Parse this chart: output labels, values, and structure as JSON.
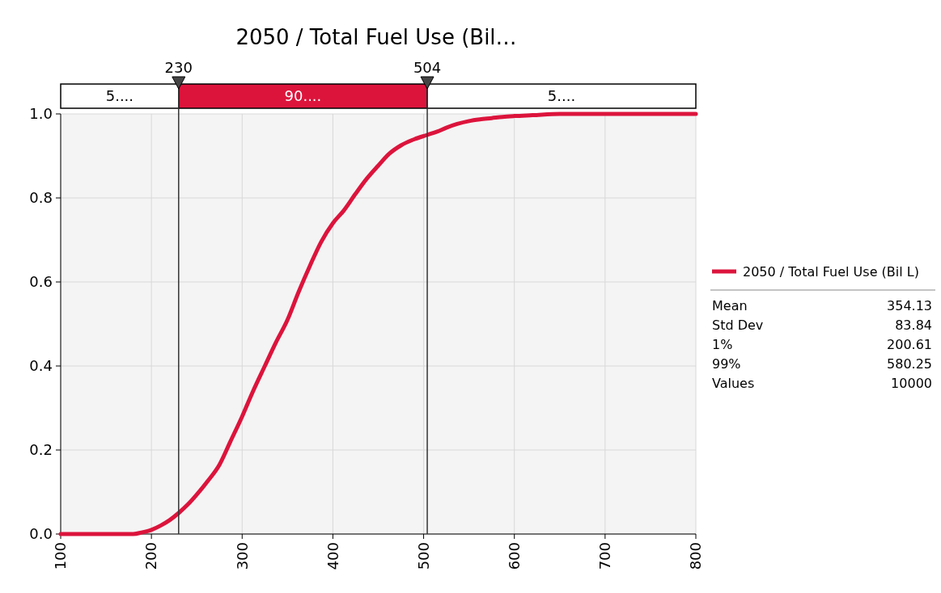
{
  "chart_data": {
    "type": "line",
    "title": "2050 / Total Fuel Use (Bil…",
    "x": [
      100,
      150,
      180,
      190,
      200,
      210,
      220,
      230,
      240,
      250,
      262,
      275,
      287,
      300,
      312,
      325,
      337,
      350,
      362,
      375,
      387,
      400,
      412,
      425,
      437,
      450,
      462,
      475,
      490,
      504,
      515,
      525,
      537,
      550,
      562,
      575,
      587,
      600,
      620,
      650,
      700,
      800
    ],
    "series": [
      {
        "name": "2050 / Total Fuel Use (Bil L)",
        "color": "#dc143c",
        "values": [
          0,
          0,
          0,
          0.004,
          0.01,
          0.02,
          0.033,
          0.05,
          0.07,
          0.094,
          0.126,
          0.165,
          0.22,
          0.28,
          0.34,
          0.4,
          0.455,
          0.51,
          0.575,
          0.64,
          0.695,
          0.74,
          0.77,
          0.81,
          0.845,
          0.877,
          0.905,
          0.925,
          0.94,
          0.95,
          0.958,
          0.967,
          0.976,
          0.983,
          0.987,
          0.99,
          0.993,
          0.995,
          0.997,
          1,
          1,
          1
        ]
      }
    ],
    "xlim": [
      100,
      800
    ],
    "xticks": [
      100,
      200,
      300,
      400,
      500,
      600,
      700,
      800
    ],
    "ylim": [
      0,
      1
    ],
    "yticks": [
      {
        "value": 0,
        "label": "0.0"
      },
      {
        "value": 0.2,
        "label": "0.2"
      },
      {
        "value": 0.4,
        "label": "0.4"
      },
      {
        "value": 0.6,
        "label": "0.6"
      },
      {
        "value": 0.8,
        "label": "0.8"
      },
      {
        "value": 1,
        "label": "1.0"
      }
    ],
    "grid": true,
    "legend": "right",
    "marker": "none",
    "line_style": "solid",
    "ref_lines": [
      {
        "axis": "x",
        "value": 230,
        "label": "230",
        "color": "#333333"
      },
      {
        "axis": "x",
        "value": 504,
        "label": "504",
        "color": "#333333"
      }
    ],
    "annotations": [
      "5....",
      "90....",
      "5....",
      "Mean",
      "354.13",
      "Std Dev",
      "83.84",
      "1%",
      "200.61",
      "99%",
      "580.25",
      "Values",
      "10000"
    ]
  }
}
